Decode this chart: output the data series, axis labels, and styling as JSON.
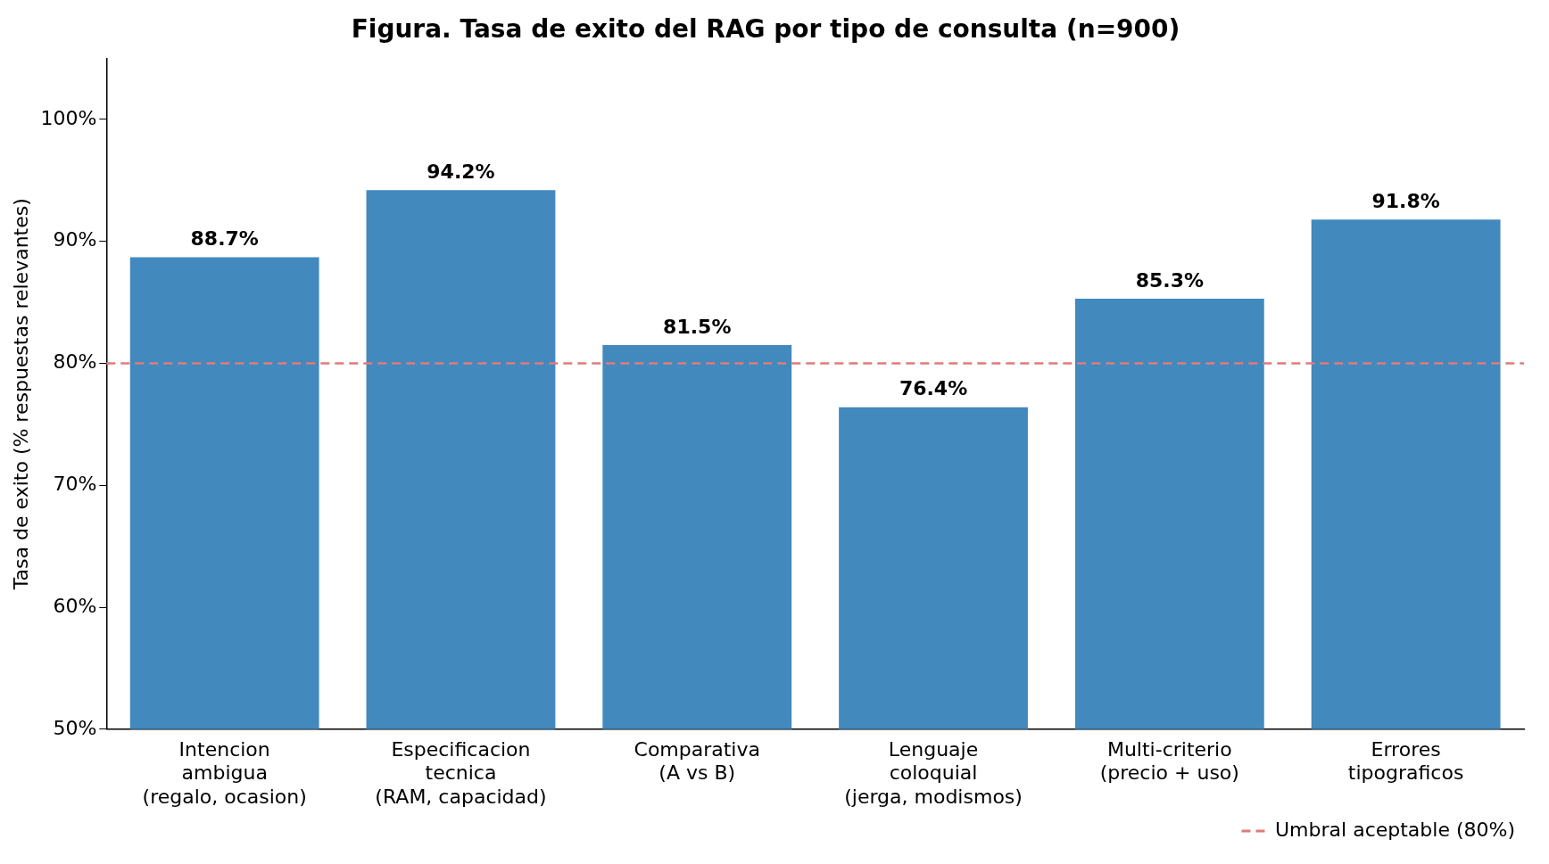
{
  "chart_data": {
    "type": "bar",
    "title": "Figura. Tasa de exito del RAG por tipo de consulta (n=900)",
    "ylabel": "Tasa de exito (% respuestas relevantes)",
    "categories": [
      "Intencion\nambigua\n(regalo, ocasion)",
      "Especificacion\ntecnica\n(RAM, capacidad)",
      "Comparativa\n(A vs B)",
      "Lenguaje\ncoloquial\n(jerga, modismos)",
      "Multi-criterio\n(precio + uso)",
      "Errores\ntipograficos"
    ],
    "values": [
      88.7,
      94.2,
      81.5,
      76.4,
      85.3,
      91.8
    ],
    "color": "#4289be",
    "value_labels": [
      "88.7%",
      "94.2%",
      "81.5%",
      "76.4%",
      "85.3%",
      "91.8%"
    ],
    "ylim": [
      50,
      105
    ],
    "yticks": [
      {
        "value": 50,
        "label": "50%"
      },
      {
        "value": 60,
        "label": "60%"
      },
      {
        "value": 70,
        "label": "70%"
      },
      {
        "value": 80,
        "label": "80%"
      },
      {
        "value": 90,
        "label": "90%"
      },
      {
        "value": 100,
        "label": "100%"
      }
    ],
    "ref_lines": [
      {
        "axis": "y",
        "value": 80,
        "label": "Umbral aceptable (80%)",
        "color": "#e07b7b",
        "line_style": "dashed"
      }
    ],
    "grid": false,
    "legend": "bottom right"
  }
}
